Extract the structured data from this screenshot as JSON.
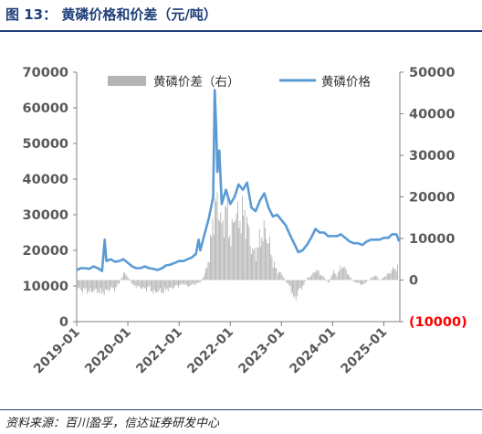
{
  "figure": {
    "title": "图 13： 黄磷价格和价差（元/吨）",
    "source": "资料来源：百川盈孚，信达证券研发中心"
  },
  "chart_data": {
    "type": "line",
    "x_start": "2019-01",
    "x_end": "2025-04",
    "x_ticks": [
      "2019-01",
      "2020-01",
      "2021-01",
      "2022-01",
      "2023-01",
      "2024-01",
      "2025-01"
    ],
    "left_axis": {
      "ylim": [
        0,
        70000
      ],
      "ticks": [
        "0",
        "10000",
        "20000",
        "30000",
        "40000",
        "50000",
        "60000",
        "70000"
      ]
    },
    "right_axis": {
      "ylim": [
        -10000,
        50000
      ],
      "ticks": [
        "(10000)",
        "0",
        "10000",
        "20000",
        "30000",
        "40000",
        "50000"
      ],
      "negative_color": "#ff0000"
    },
    "legend": {
      "position": "top",
      "items": [
        "黄磷价差（右）",
        "黄磷价格"
      ]
    },
    "grid": false,
    "series": [
      {
        "name": "黄磷价差（右）",
        "type": "bar",
        "axis": "right",
        "color": "#b4b4b4",
        "points": [
          [
            "2019-01-01",
            -1800
          ],
          [
            "2019-02-01",
            -2500
          ],
          [
            "2019-03-01",
            -2200
          ],
          [
            "2019-04-01",
            -2900
          ],
          [
            "2019-05-01",
            -2400
          ],
          [
            "2019-06-01",
            -2700
          ],
          [
            "2019-07-01",
            -3000
          ],
          [
            "2019-08-01",
            -2600
          ],
          [
            "2019-09-01",
            -1900
          ],
          [
            "2019-10-01",
            -2200
          ],
          [
            "2019-11-01",
            -500
          ],
          [
            "2019-12-01",
            1800
          ],
          [
            "2020-01-01",
            600
          ],
          [
            "2020-02-01",
            -1200
          ],
          [
            "2020-03-01",
            -1500
          ],
          [
            "2020-04-01",
            -1800
          ],
          [
            "2020-05-01",
            -2200
          ],
          [
            "2020-06-01",
            -1600
          ],
          [
            "2020-07-01",
            -3200
          ],
          [
            "2020-08-01",
            -2500
          ],
          [
            "2020-09-01",
            -2800
          ],
          [
            "2020-10-01",
            -2200
          ],
          [
            "2020-11-01",
            -2000
          ],
          [
            "2020-12-01",
            -1500
          ],
          [
            "2021-01-01",
            -1300
          ],
          [
            "2021-02-01",
            -800
          ],
          [
            "2021-03-01",
            -1600
          ],
          [
            "2021-04-01",
            -1000
          ],
          [
            "2021-05-01",
            -900
          ],
          [
            "2021-06-01",
            -400
          ],
          [
            "2021-07-01",
            1500
          ],
          [
            "2021-08-01",
            5500
          ],
          [
            "2021-09-01",
            16000
          ],
          [
            "2021-10-01",
            19000
          ],
          [
            "2021-11-01",
            12000
          ],
          [
            "2021-12-01",
            18000
          ],
          [
            "2022-01-01",
            9000
          ],
          [
            "2022-02-01",
            17000
          ],
          [
            "2022-03-01",
            14000
          ],
          [
            "2022-04-01",
            16000
          ],
          [
            "2022-05-01",
            13500
          ],
          [
            "2022-06-01",
            7000
          ],
          [
            "2022-07-01",
            6500
          ],
          [
            "2022-08-01",
            10000
          ],
          [
            "2022-09-01",
            12000
          ],
          [
            "2022-10-01",
            9000
          ],
          [
            "2022-11-01",
            4000
          ],
          [
            "2022-12-01",
            2000
          ],
          [
            "2023-01-01",
            1500
          ],
          [
            "2023-02-01",
            -500
          ],
          [
            "2023-03-01",
            -1500
          ],
          [
            "2023-04-01",
            -5000
          ],
          [
            "2023-05-01",
            -2500
          ],
          [
            "2023-06-01",
            -1500
          ],
          [
            "2023-07-01",
            500
          ],
          [
            "2023-08-01",
            1000
          ],
          [
            "2023-09-01",
            2500
          ],
          [
            "2023-10-01",
            1500
          ],
          [
            "2023-11-01",
            500
          ],
          [
            "2023-12-01",
            -700
          ],
          [
            "2024-01-01",
            2000
          ],
          [
            "2024-02-01",
            1000
          ],
          [
            "2024-03-01",
            3500
          ],
          [
            "2024-04-01",
            2500
          ],
          [
            "2024-05-01",
            700
          ],
          [
            "2024-06-01",
            -500
          ],
          [
            "2024-07-01",
            -700
          ],
          [
            "2024-08-01",
            -1200
          ],
          [
            "2024-09-01",
            -300
          ],
          [
            "2024-10-01",
            500
          ],
          [
            "2024-11-01",
            1200
          ],
          [
            "2024-12-01",
            -200
          ],
          [
            "2025-01-01",
            800
          ],
          [
            "2025-02-01",
            1500
          ],
          [
            "2025-03-01",
            2500
          ],
          [
            "2025-04-01",
            3000
          ]
        ]
      },
      {
        "name": "黄磷价格",
        "type": "line",
        "axis": "left",
        "color": "#5b9bd5",
        "points": [
          [
            "2019-01-01",
            14500
          ],
          [
            "2019-02-01",
            15000
          ],
          [
            "2019-03-01",
            15000
          ],
          [
            "2019-04-01",
            14800
          ],
          [
            "2019-05-01",
            15500
          ],
          [
            "2019-06-01",
            15000
          ],
          [
            "2019-07-01",
            14200
          ],
          [
            "2019-07-20",
            23000
          ],
          [
            "2019-08-01",
            17000
          ],
          [
            "2019-09-01",
            17500
          ],
          [
            "2019-10-01",
            16800
          ],
          [
            "2019-11-01",
            17000
          ],
          [
            "2019-12-01",
            17500
          ],
          [
            "2020-01-01",
            16500
          ],
          [
            "2020-02-01",
            15500
          ],
          [
            "2020-03-01",
            15000
          ],
          [
            "2020-04-01",
            15000
          ],
          [
            "2020-05-01",
            15500
          ],
          [
            "2020-06-01",
            15000
          ],
          [
            "2020-07-01",
            14800
          ],
          [
            "2020-08-01",
            14500
          ],
          [
            "2020-09-01",
            15000
          ],
          [
            "2020-10-01",
            15800
          ],
          [
            "2020-11-01",
            16000
          ],
          [
            "2020-12-01",
            16500
          ],
          [
            "2021-01-01",
            17000
          ],
          [
            "2021-02-01",
            17000
          ],
          [
            "2021-03-01",
            17500
          ],
          [
            "2021-04-01",
            18000
          ],
          [
            "2021-05-01",
            19000
          ],
          [
            "2021-05-20",
            23000
          ],
          [
            "2021-06-01",
            20000
          ],
          [
            "2021-07-01",
            24500
          ],
          [
            "2021-08-01",
            29000
          ],
          [
            "2021-09-01",
            35000
          ],
          [
            "2021-09-12",
            65000
          ],
          [
            "2021-09-22",
            55000
          ],
          [
            "2021-10-01",
            42000
          ],
          [
            "2021-10-15",
            48000
          ],
          [
            "2021-11-01",
            33000
          ],
          [
            "2021-12-01",
            37000
          ],
          [
            "2022-01-01",
            33000
          ],
          [
            "2022-02-01",
            35000
          ],
          [
            "2022-03-01",
            38500
          ],
          [
            "2022-04-01",
            37000
          ],
          [
            "2022-05-01",
            39000
          ],
          [
            "2022-06-01",
            32000
          ],
          [
            "2022-07-01",
            31000
          ],
          [
            "2022-08-01",
            34000
          ],
          [
            "2022-09-01",
            36000
          ],
          [
            "2022-10-01",
            32000
          ],
          [
            "2022-11-01",
            29500
          ],
          [
            "2022-12-01",
            30000
          ],
          [
            "2023-01-01",
            28500
          ],
          [
            "2023-02-01",
            27000
          ],
          [
            "2023-03-01",
            24500
          ],
          [
            "2023-04-01",
            22000
          ],
          [
            "2023-05-01",
            19500
          ],
          [
            "2023-06-01",
            20000
          ],
          [
            "2023-07-01",
            21500
          ],
          [
            "2023-08-01",
            23500
          ],
          [
            "2023-09-01",
            26000
          ],
          [
            "2023-10-01",
            25000
          ],
          [
            "2023-11-01",
            25000
          ],
          [
            "2023-12-01",
            24000
          ],
          [
            "2024-01-01",
            24000
          ],
          [
            "2024-02-01",
            24000
          ],
          [
            "2024-03-01",
            24500
          ],
          [
            "2024-04-01",
            23500
          ],
          [
            "2024-05-01",
            22500
          ],
          [
            "2024-06-01",
            22000
          ],
          [
            "2024-07-01",
            22000
          ],
          [
            "2024-08-01",
            21500
          ],
          [
            "2024-09-01",
            22500
          ],
          [
            "2024-10-01",
            23000
          ],
          [
            "2024-11-01",
            23000
          ],
          [
            "2024-12-01",
            23000
          ],
          [
            "2025-01-01",
            23500
          ],
          [
            "2025-02-01",
            23500
          ],
          [
            "2025-03-01",
            24500
          ],
          [
            "2025-04-01",
            24500
          ],
          [
            "2025-04-20",
            22500
          ]
        ]
      }
    ]
  }
}
